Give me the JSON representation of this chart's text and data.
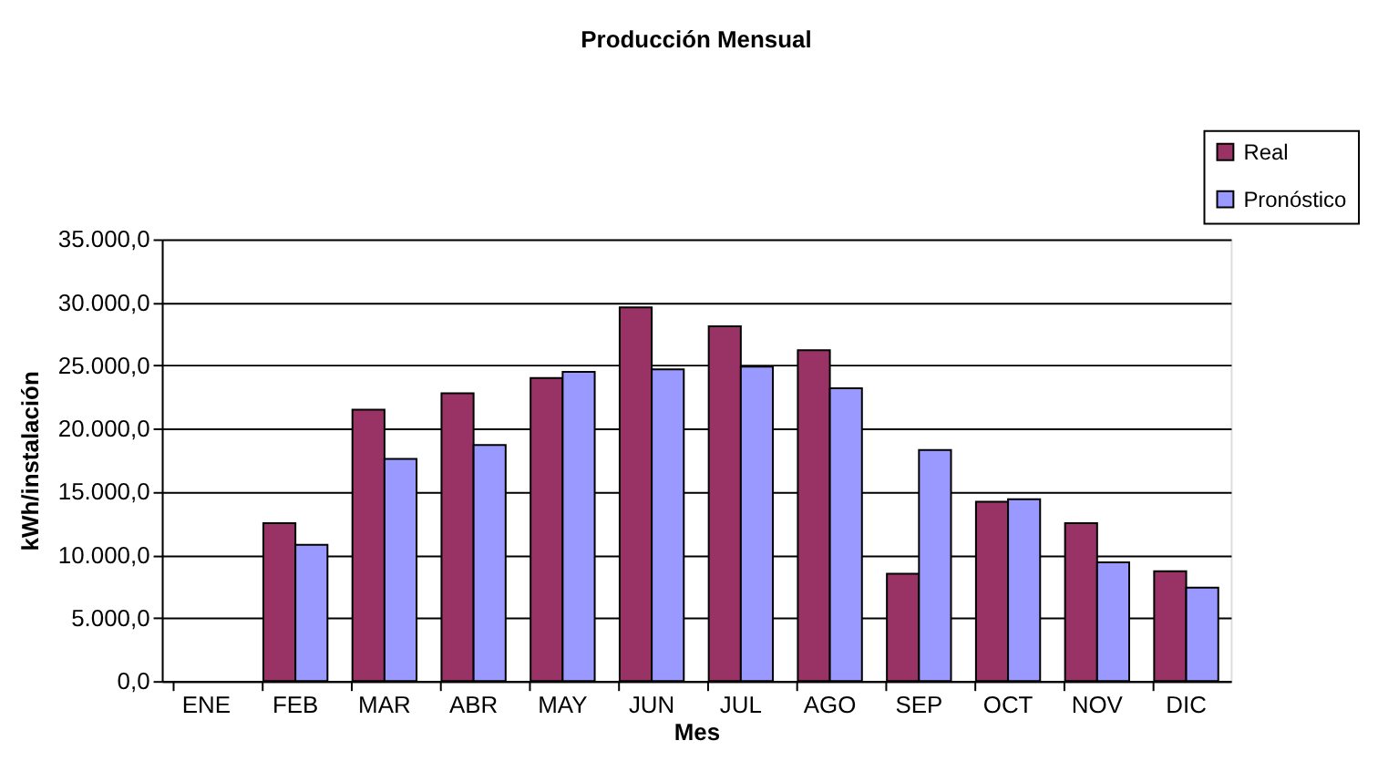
{
  "chart_data": {
    "type": "bar",
    "title": "Producción Mensual",
    "xlabel": "Mes",
    "ylabel": "kWh/instalación",
    "categories": [
      "ENE",
      "FEB",
      "MAR",
      "ABR",
      "MAY",
      "JUN",
      "JUL",
      "AGO",
      "SEP",
      "OCT",
      "NOV",
      "DIC"
    ],
    "series": [
      {
        "name": "Real",
        "color": "#993366",
        "values": [
          null,
          12500,
          21500,
          22800,
          24000,
          29600,
          28100,
          26200,
          8500,
          14200,
          12500,
          8700
        ]
      },
      {
        "name": "Pronóstico",
        "color": "#9999ff",
        "values": [
          null,
          10800,
          17600,
          18700,
          24500,
          24700,
          24900,
          23200,
          18300,
          14400,
          9400,
          7400
        ]
      }
    ],
    "ylim": [
      0,
      35000
    ],
    "yticks": [
      {
        "value": 0,
        "label": "0,0"
      },
      {
        "value": 5000,
        "label": "5.000,0"
      },
      {
        "value": 10000,
        "label": "10.000,0"
      },
      {
        "value": 15000,
        "label": "15.000,0"
      },
      {
        "value": 20000,
        "label": "20.000,0"
      },
      {
        "value": 25000,
        "label": "25.000,0"
      },
      {
        "value": 30000,
        "label": "30.000,0"
      },
      {
        "value": 35000,
        "label": "35.000,0"
      }
    ],
    "grid": "y",
    "legend": "top right"
  }
}
